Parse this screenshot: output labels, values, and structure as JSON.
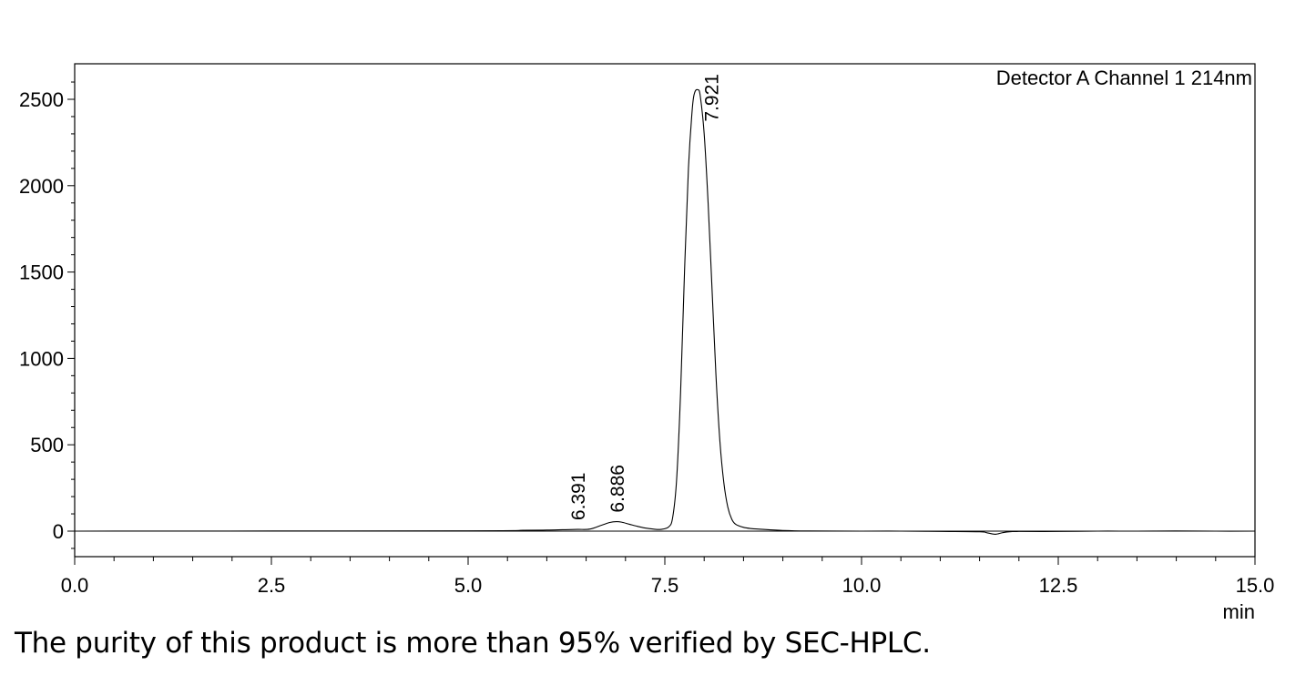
{
  "caption": "The purity of this product is more than 95% verified by SEC-HPLC.",
  "chart_data": {
    "type": "line",
    "detector_label": "Detector A Channel 1 214nm",
    "xunit": "min",
    "xlim": [
      0,
      15
    ],
    "ylim": [
      -150,
      2700
    ],
    "x_ticks": [
      0.0,
      2.5,
      5.0,
      7.5,
      10.0,
      12.5,
      15.0
    ],
    "x_tick_labels": [
      "0.0",
      "2.5",
      "5.0",
      "7.5",
      "10.0",
      "12.5",
      "15.0"
    ],
    "y_ticks": [
      0,
      500,
      1000,
      1500,
      2000,
      2500
    ],
    "y_tick_labels": [
      "0",
      "500",
      "1000",
      "1500",
      "2000",
      "2500"
    ],
    "grid": false,
    "baseline": 0,
    "peaks": [
      {
        "label": "6.391",
        "x": 6.391,
        "y": 10
      },
      {
        "label": "6.886",
        "x": 6.886,
        "y": 55
      },
      {
        "label": "7.921",
        "x": 7.921,
        "y": 2555
      }
    ],
    "series": [
      {
        "x": [
          0.0,
          5.0,
          5.7,
          6.0,
          6.2,
          6.391,
          6.55,
          6.7,
          6.8,
          6.886,
          6.95,
          7.05,
          7.15,
          7.25,
          7.35,
          7.45,
          7.55,
          7.6,
          7.65,
          7.7,
          7.75,
          7.8,
          7.85,
          7.88,
          7.921,
          7.95,
          8.0,
          8.05,
          8.1,
          8.15,
          8.2,
          8.25,
          8.3,
          8.35,
          8.4,
          8.5,
          8.6,
          8.75,
          9.0,
          9.3,
          10.0,
          10.5,
          11.0,
          11.5,
          11.6,
          11.7,
          11.8,
          11.9,
          12.0,
          12.5,
          13.0,
          13.5,
          14.0,
          14.5,
          15.0
        ],
        "y": [
          0,
          2,
          5,
          6,
          8,
          10,
          12,
          35,
          50,
          55,
          52,
          40,
          28,
          18,
          12,
          10,
          25,
          80,
          300,
          800,
          1500,
          2100,
          2450,
          2540,
          2555,
          2520,
          2300,
          1900,
          1400,
          900,
          520,
          280,
          140,
          70,
          40,
          22,
          15,
          10,
          4,
          1,
          0,
          0,
          -2,
          -4,
          -10,
          -18,
          -8,
          -3,
          -2,
          -2,
          0,
          0,
          1,
          0,
          0
        ]
      }
    ]
  }
}
